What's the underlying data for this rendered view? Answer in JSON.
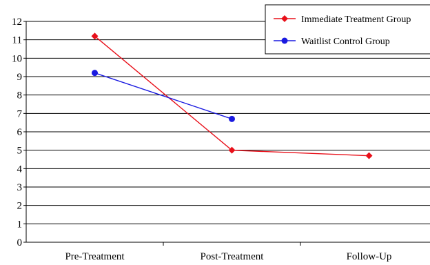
{
  "chart_data": {
    "type": "line",
    "categories": [
      "Pre-Treatment",
      "Post-Treatment",
      "Follow-Up"
    ],
    "ylim": [
      0,
      12
    ],
    "yticks": [
      0,
      1,
      2,
      3,
      4,
      5,
      6,
      7,
      8,
      9,
      10,
      11,
      12
    ],
    "grid": true,
    "legend_position": "top-right",
    "series": [
      {
        "name": "Immediate Treatment Group",
        "color": "#e8101a",
        "marker": "diamond",
        "values": [
          11.2,
          5.0,
          4.7
        ]
      },
      {
        "name": "Waitlist Control Group",
        "color": "#1a1ae0",
        "marker": "circle",
        "values": [
          9.2,
          6.7,
          null
        ]
      }
    ],
    "title": "",
    "xlabel": "",
    "ylabel": ""
  }
}
